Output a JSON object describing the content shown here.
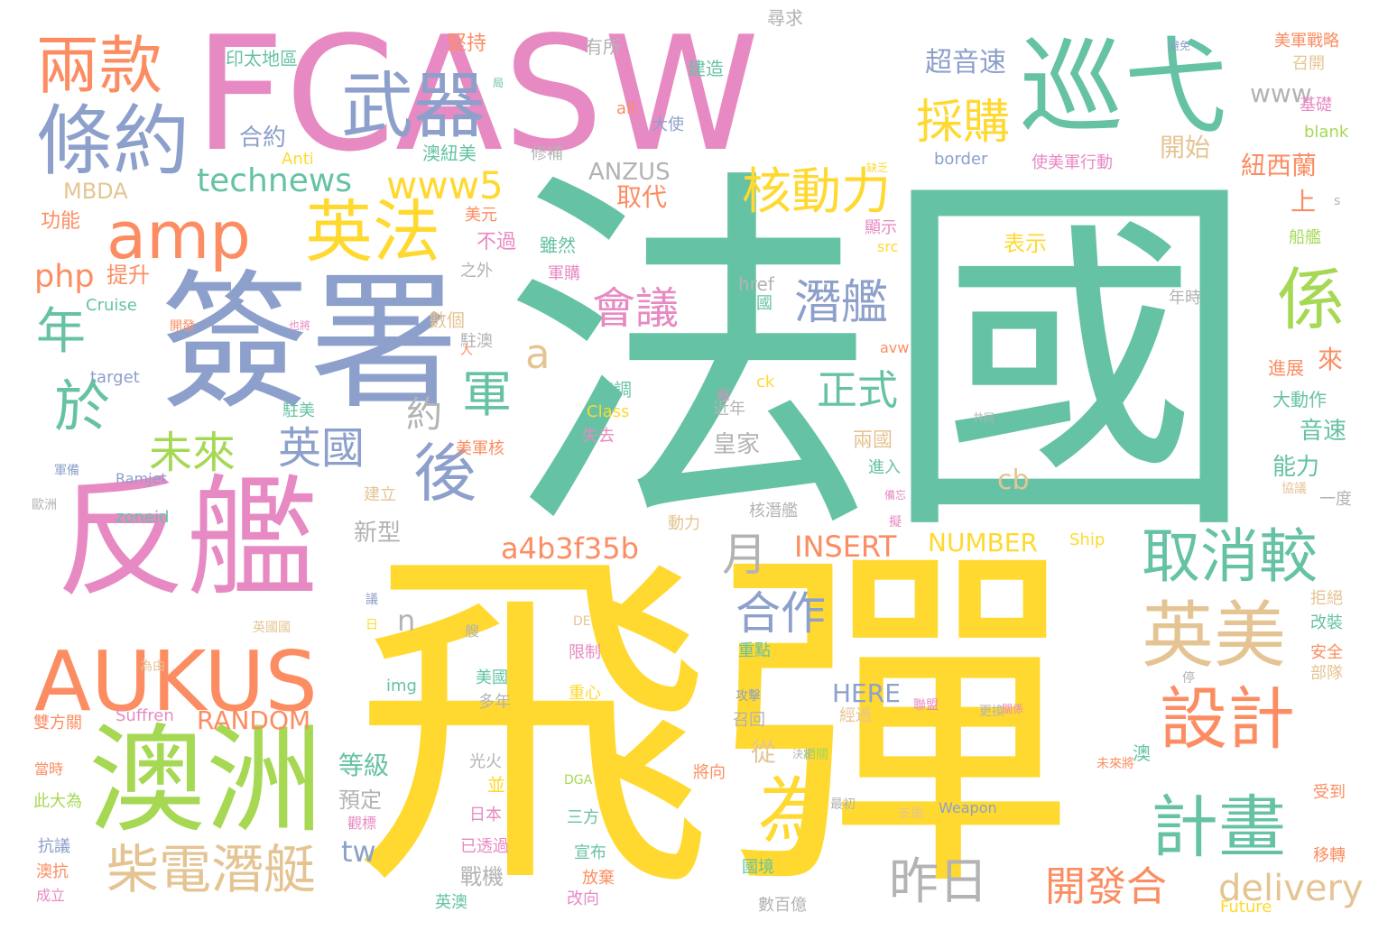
{
  "palette": {
    "teal": "#66c2a5",
    "orange": "#fc8d62",
    "blue": "#8da0cb",
    "pink": "#e78ac3",
    "green": "#a6d854",
    "yellow": "#ffd92f",
    "tan": "#e5c494",
    "gray": "#b3b3b3"
  },
  "words": [
    {
      "text": "法國",
      "color": "teal"
    },
    {
      "text": "飛彈",
      "color": "yellow"
    },
    {
      "text": "FCASW",
      "color": "pink"
    },
    {
      "text": "簽署",
      "color": "blue"
    },
    {
      "text": "反艦",
      "color": "pink"
    },
    {
      "text": "澳洲",
      "color": "green"
    },
    {
      "text": "巡弋",
      "color": "teal"
    },
    {
      "text": "AUKUS",
      "color": "orange"
    },
    {
      "text": "條約",
      "color": "blue"
    },
    {
      "text": "兩款",
      "color": "orange"
    },
    {
      "text": "武器",
      "color": "blue"
    },
    {
      "text": "amp",
      "color": "orange"
    },
    {
      "text": "英法",
      "color": "yellow"
    },
    {
      "text": "英美",
      "color": "tan"
    },
    {
      "text": "設計",
      "color": "orange"
    },
    {
      "text": "計畫",
      "color": "teal"
    },
    {
      "text": "係",
      "color": "green"
    },
    {
      "text": "後",
      "color": "blue"
    },
    {
      "text": "柴電潛艇",
      "color": "tan"
    },
    {
      "text": "於",
      "color": "teal"
    },
    {
      "text": "年",
      "color": "teal"
    },
    {
      "text": "為",
      "color": "yellow"
    },
    {
      "text": "取消較",
      "color": "teal"
    },
    {
      "text": "核動力",
      "color": "yellow"
    },
    {
      "text": "採購",
      "color": "yellow"
    },
    {
      "text": "軍",
      "color": "teal"
    },
    {
      "text": "潛艦",
      "color": "blue"
    },
    {
      "text": "會議",
      "color": "pink"
    },
    {
      "text": "英國",
      "color": "blue"
    },
    {
      "text": "未來",
      "color": "green"
    },
    {
      "text": "正式",
      "color": "teal"
    },
    {
      "text": "合作",
      "color": "blue"
    },
    {
      "text": "昨日",
      "color": "gray"
    },
    {
      "text": "開發合",
      "color": "orange"
    },
    {
      "text": "technews",
      "color": "teal"
    },
    {
      "text": "www5",
      "color": "yellow"
    },
    {
      "text": "a4b3f35b",
      "color": "orange"
    },
    {
      "text": "超音速",
      "color": "blue"
    },
    {
      "text": "月",
      "color": "gray"
    },
    {
      "text": "delivery",
      "color": "tan"
    },
    {
      "text": "php",
      "color": "orange"
    },
    {
      "text": "INSERT",
      "color": "orange"
    },
    {
      "text": "NUMBER",
      "color": "yellow"
    },
    {
      "text": "RANDOM",
      "color": "orange"
    },
    {
      "text": "HERE",
      "color": "blue"
    },
    {
      "text": "www",
      "color": "gray"
    },
    {
      "text": "ANZUS",
      "color": "gray"
    },
    {
      "text": "MBDA",
      "color": "tan"
    },
    {
      "text": "約",
      "color": "gray"
    },
    {
      "text": "合約",
      "color": "blue"
    },
    {
      "text": "提升",
      "color": "orange"
    },
    {
      "text": "功能",
      "color": "orange"
    },
    {
      "text": "取代",
      "color": "orange"
    },
    {
      "text": "開始",
      "color": "tan"
    },
    {
      "text": "紐西蘭",
      "color": "orange"
    },
    {
      "text": "上",
      "color": "orange"
    },
    {
      "text": "表示",
      "color": "yellow"
    },
    {
      "text": "來",
      "color": "orange"
    },
    {
      "text": "音速",
      "color": "teal"
    },
    {
      "text": "能力",
      "color": "teal"
    },
    {
      "text": "大動作",
      "color": "teal"
    },
    {
      "text": "進展",
      "color": "orange"
    },
    {
      "text": "兩國",
      "color": "tan"
    },
    {
      "text": "皇家",
      "color": "gray"
    },
    {
      "text": "進入",
      "color": "teal"
    },
    {
      "text": "新型",
      "color": "gray"
    },
    {
      "text": "等級",
      "color": "teal"
    },
    {
      "text": "預定",
      "color": "gray"
    },
    {
      "text": "戰機",
      "color": "gray"
    },
    {
      "text": "tw",
      "color": "blue"
    },
    {
      "text": "cb",
      "color": "tan"
    },
    {
      "text": "n",
      "color": "gray"
    },
    {
      "text": "a",
      "color": "tan"
    },
    {
      "text": "從",
      "color": "tan"
    },
    {
      "text": "堅持",
      "color": "orange"
    },
    {
      "text": "有所",
      "color": "gray"
    },
    {
      "text": "尋求",
      "color": "gray"
    },
    {
      "text": "印太地區",
      "color": "teal"
    },
    {
      "text": "建造",
      "color": "teal"
    },
    {
      "text": "美軍戰略",
      "color": "orange"
    },
    {
      "text": "召開",
      "color": "tan"
    },
    {
      "text": "基礎",
      "color": "pink"
    },
    {
      "text": "blank",
      "color": "green"
    },
    {
      "text": "alt",
      "color": "orange"
    },
    {
      "text": "大使",
      "color": "blue"
    },
    {
      "text": "修補",
      "color": "gray"
    },
    {
      "text": "澳紐美",
      "color": "teal"
    },
    {
      "text": "Anti",
      "color": "yellow"
    },
    {
      "text": "border",
      "color": "blue"
    },
    {
      "text": "使美軍行動",
      "color": "pink"
    },
    {
      "text": "美元",
      "color": "orange"
    },
    {
      "text": "不過",
      "color": "pink"
    },
    {
      "text": "雖然",
      "color": "teal"
    },
    {
      "text": "顯示",
      "color": "pink"
    },
    {
      "text": "src",
      "color": "yellow"
    },
    {
      "text": "之外",
      "color": "gray"
    },
    {
      "text": "軍購",
      "color": "pink"
    },
    {
      "text": "href",
      "color": "gray"
    },
    {
      "text": "德國",
      "color": "teal"
    },
    {
      "text": "數個",
      "color": "tan"
    },
    {
      "text": "駐澳",
      "color": "gray"
    },
    {
      "text": "Cruise",
      "color": "teal"
    },
    {
      "text": "target",
      "color": "blue"
    },
    {
      "text": "駐美",
      "color": "teal"
    },
    {
      "text": "協調",
      "color": "teal"
    },
    {
      "text": "Class",
      "color": "yellow"
    },
    {
      "text": "失去",
      "color": "pink"
    },
    {
      "text": "美軍核",
      "color": "orange"
    },
    {
      "text": "近年",
      "color": "gray"
    },
    {
      "text": "ck",
      "color": "yellow"
    },
    {
      "text": "avw",
      "color": "orange"
    },
    {
      "text": "年時",
      "color": "gray"
    },
    {
      "text": "船艦",
      "color": "green"
    },
    {
      "text": "Ramjet",
      "color": "blue"
    },
    {
      "text": "zoneid",
      "color": "teal"
    },
    {
      "text": "建立",
      "color": "tan"
    },
    {
      "text": "動力",
      "color": "tan"
    },
    {
      "text": "核潛艦",
      "color": "gray"
    },
    {
      "text": "Ship",
      "color": "yellow"
    },
    {
      "text": "一度",
      "color": "gray"
    },
    {
      "text": "拒絕",
      "color": "tan"
    },
    {
      "text": "改裝",
      "color": "teal"
    },
    {
      "text": "安全",
      "color": "orange"
    },
    {
      "text": "部隊",
      "color": "tan"
    },
    {
      "text": "限制",
      "color": "pink"
    },
    {
      "text": "美國",
      "color": "teal"
    },
    {
      "text": "多年",
      "color": "gray"
    },
    {
      "text": "重點",
      "color": "teal"
    },
    {
      "text": "重心",
      "color": "yellow"
    },
    {
      "text": "img",
      "color": "teal"
    },
    {
      "text": "Suffren",
      "color": "pink"
    },
    {
      "text": "雙方關",
      "color": "orange"
    },
    {
      "text": "經過",
      "color": "tan"
    },
    {
      "text": "召回",
      "color": "gray"
    },
    {
      "text": "光火",
      "color": "gray"
    },
    {
      "text": "將向",
      "color": "orange"
    },
    {
      "text": "日本",
      "color": "pink"
    },
    {
      "text": "三方",
      "color": "teal"
    },
    {
      "text": "宣布",
      "color": "teal"
    },
    {
      "text": "放棄",
      "color": "orange"
    },
    {
      "text": "改向",
      "color": "pink"
    },
    {
      "text": "已透過",
      "color": "pink"
    },
    {
      "text": "國境",
      "color": "teal"
    },
    {
      "text": "數百億",
      "color": "gray"
    },
    {
      "text": "英澳",
      "color": "teal"
    },
    {
      "text": "Future",
      "color": "yellow"
    },
    {
      "text": "Weapon",
      "color": "blue"
    },
    {
      "text": "DGA",
      "color": "green"
    },
    {
      "text": "受到",
      "color": "orange"
    },
    {
      "text": "移轉",
      "color": "orange"
    },
    {
      "text": "此大為",
      "color": "green"
    },
    {
      "text": "抗議",
      "color": "blue"
    },
    {
      "text": "澳抗",
      "color": "orange"
    },
    {
      "text": "成立",
      "color": "pink"
    },
    {
      "text": "當時",
      "color": "orange"
    },
    {
      "text": "觀標",
      "color": "pink"
    },
    {
      "text": "並",
      "color": "yellow"
    },
    {
      "text": "DE",
      "color": "tan"
    },
    {
      "text": "停",
      "color": "gray"
    },
    {
      "text": "議",
      "color": "blue"
    },
    {
      "text": "日",
      "color": "yellow"
    },
    {
      "text": "艘",
      "color": "gray"
    },
    {
      "text": "s",
      "color": "gray"
    },
    {
      "text": "澳",
      "color": "teal"
    },
    {
      "text": "人",
      "color": "orange"
    },
    {
      "text": "局",
      "color": "teal"
    },
    {
      "text": "讓",
      "color": "pink"
    },
    {
      "text": "歐洲",
      "color": "gray"
    },
    {
      "text": "軍備",
      "color": "blue"
    },
    {
      "text": "攻擊",
      "color": "blue"
    },
    {
      "text": "聯盟",
      "color": "pink"
    },
    {
      "text": "更換",
      "color": "gray"
    },
    {
      "text": "支援",
      "color": "tan"
    },
    {
      "text": "最初",
      "color": "gray"
    },
    {
      "text": "未來將",
      "color": "orange"
    },
    {
      "text": "相關",
      "color": "green"
    },
    {
      "text": "紐",
      "color": "pink"
    },
    {
      "text": "英國國",
      "color": "tan"
    },
    {
      "text": "為由",
      "color": "tan"
    },
    {
      "text": "開發",
      "color": "orange"
    },
    {
      "text": "缺乏",
      "color": "yellow"
    },
    {
      "text": "也將",
      "color": "pink"
    },
    {
      "text": "共同",
      "color": "gray"
    },
    {
      "text": "協議",
      "color": "tan"
    },
    {
      "text": "擬",
      "color": "pink"
    },
    {
      "text": "備忘",
      "color": "pink"
    },
    {
      "text": "避免",
      "color": "blue"
    },
    {
      "text": "關係",
      "color": "pink"
    },
    {
      "text": "決定",
      "color": "gray"
    }
  ]
}
